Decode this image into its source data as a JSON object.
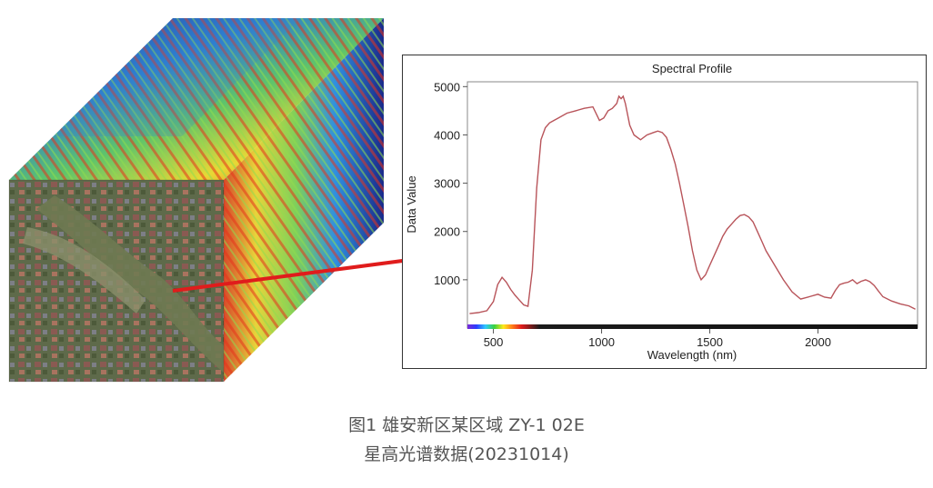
{
  "chart_data": {
    "type": "line",
    "title": "Spectral Profile",
    "xlabel": "Wavelength (nm)",
    "ylabel": "Data Value",
    "xlim": [
      380,
      2460
    ],
    "ylim": [
      0,
      5100
    ],
    "xticks": [
      500,
      1000,
      1500,
      2000
    ],
    "yticks": [
      1000,
      2000,
      3000,
      4000,
      5000
    ],
    "grid": false,
    "line_color": "#b8545a",
    "series": [
      {
        "x": [
          390,
          430,
          470,
          500,
          520,
          540,
          560,
          580,
          600,
          620,
          640,
          660,
          680,
          700,
          720,
          740,
          760,
          780,
          800,
          840,
          880,
          920,
          960,
          990,
          1010,
          1030,
          1050,
          1070,
          1080,
          1090,
          1100,
          1110,
          1130,
          1150,
          1180,
          1210,
          1240,
          1260,
          1280,
          1300,
          1320,
          1340,
          1360,
          1380,
          1400,
          1420,
          1440,
          1460,
          1480,
          1500,
          1520,
          1540,
          1560,
          1580,
          1600,
          1620,
          1640,
          1660,
          1680,
          1700,
          1720,
          1740,
          1760,
          1800,
          1840,
          1880,
          1920,
          1960,
          2000,
          2030,
          2060,
          2080,
          2100,
          2120,
          2140,
          2160,
          2180,
          2200,
          2220,
          2240,
          2260,
          2280,
          2300,
          2340,
          2380,
          2420,
          2450
        ],
        "y": [
          300,
          320,
          360,
          550,
          900,
          1050,
          950,
          800,
          680,
          580,
          480,
          450,
          1200,
          2900,
          3900,
          4150,
          4250,
          4300,
          4350,
          4450,
          4500,
          4550,
          4580,
          4300,
          4350,
          4500,
          4550,
          4650,
          4800,
          4750,
          4800,
          4650,
          4200,
          4000,
          3900,
          4000,
          4050,
          4080,
          4050,
          3950,
          3700,
          3400,
          3000,
          2550,
          2100,
          1600,
          1200,
          1000,
          1100,
          1300,
          1500,
          1700,
          1900,
          2050,
          2150,
          2250,
          2330,
          2350,
          2300,
          2200,
          2000,
          1800,
          1600,
          1300,
          1000,
          750,
          600,
          650,
          700,
          640,
          620,
          780,
          900,
          930,
          950,
          1000,
          920,
          970,
          1000,
          960,
          880,
          760,
          650,
          560,
          500,
          460,
          390
        ]
      }
    ]
  },
  "caption": {
    "line1": "图1  雄安新区某区域 ZY-1 02E",
    "line2": "星高光谱数据(20231014)"
  }
}
